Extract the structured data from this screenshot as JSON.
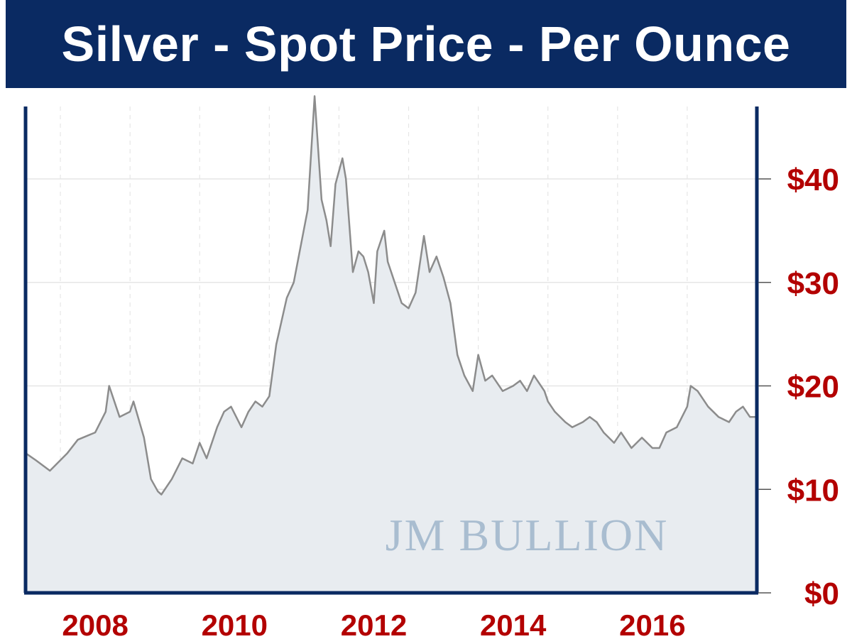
{
  "title": "Silver - Spot Price - Per Ounce",
  "watermark": "JM BULLION",
  "colors": {
    "title_bg": "#0a2a62",
    "title_text": "#ffffff",
    "frame": "#0a2a62",
    "tick_labels": "#b30000",
    "line": "#8c8c8c",
    "area_fill": "#e8ecf0",
    "grid": "#e6e6e6",
    "watermark": "#a9bdd0"
  },
  "chart_data": {
    "type": "area",
    "title": "Silver - Spot Price - Per Ounce",
    "xlabel": "",
    "ylabel": "",
    "xlim": [
      2007.0,
      2017.5
    ],
    "ylim": [
      0,
      47
    ],
    "grid": true,
    "legend": "none",
    "x_ticks": [
      2008,
      2010,
      2012,
      2014,
      2016
    ],
    "x_tick_labels": [
      "2008",
      "2010",
      "2012",
      "2014",
      "2016"
    ],
    "y_ticks": [
      0,
      10,
      20,
      30,
      40
    ],
    "y_tick_labels": [
      "$0",
      "$10",
      "$20",
      "$30",
      "$40"
    ],
    "y_axis_side": "right",
    "series": [
      {
        "x": [
          2007.0,
          2007.15,
          2007.35,
          2007.6,
          2007.75,
          2008.0,
          2008.15,
          2008.2,
          2008.35,
          2008.5,
          2008.55,
          2008.7,
          2008.8,
          2008.9,
          2008.95,
          2009.1,
          2009.25,
          2009.4,
          2009.5,
          2009.6,
          2009.75,
          2009.85,
          2009.95,
          2010.1,
          2010.2,
          2010.3,
          2010.4,
          2010.5,
          2010.6,
          2010.75,
          2010.85,
          2011.05,
          2011.15,
          2011.25,
          2011.32,
          2011.38,
          2011.45,
          2011.55,
          2011.6,
          2011.7,
          2011.78,
          2011.85,
          2011.92,
          2012.0,
          2012.05,
          2012.15,
          2012.2,
          2012.3,
          2012.4,
          2012.5,
          2012.6,
          2012.72,
          2012.8,
          2012.9,
          2013.0,
          2013.1,
          2013.2,
          2013.3,
          2013.42,
          2013.5,
          2013.6,
          2013.7,
          2013.85,
          2014.0,
          2014.1,
          2014.2,
          2014.3,
          2014.45,
          2014.5,
          2014.6,
          2014.75,
          2014.85,
          2015.0,
          2015.1,
          2015.2,
          2015.3,
          2015.45,
          2015.55,
          2015.7,
          2015.85,
          2016.0,
          2016.1,
          2016.2,
          2016.35,
          2016.5,
          2016.55,
          2016.65,
          2016.8,
          2016.95,
          2017.1,
          2017.2,
          2017.3,
          2017.4,
          2017.5
        ],
        "values": [
          13.5,
          12.8,
          11.8,
          13.5,
          14.8,
          15.5,
          17.5,
          20.0,
          17.0,
          17.5,
          18.5,
          15.0,
          11.0,
          9.8,
          9.5,
          11.0,
          13.0,
          12.5,
          14.5,
          13.0,
          16.0,
          17.5,
          18.0,
          16.0,
          17.5,
          18.5,
          18.0,
          19.0,
          24.0,
          28.5,
          30.0,
          37.0,
          48.0,
          38.0,
          36.0,
          33.5,
          39.5,
          42.0,
          40.0,
          31.0,
          33.0,
          32.5,
          31.0,
          28.0,
          33.0,
          35.0,
          32.0,
          30.0,
          28.0,
          27.5,
          29.0,
          34.5,
          31.0,
          32.5,
          30.5,
          28.0,
          23.0,
          21.0,
          19.5,
          23.0,
          20.5,
          21.0,
          19.5,
          20.0,
          20.5,
          19.5,
          21.0,
          19.5,
          18.5,
          17.5,
          16.5,
          16.0,
          16.5,
          17.0,
          16.5,
          15.5,
          14.5,
          15.5,
          14.0,
          15.0,
          14.0,
          14.0,
          15.5,
          16.0,
          18.0,
          20.0,
          19.5,
          18.0,
          17.0,
          16.5,
          17.5,
          18.0,
          17.0,
          17.0
        ]
      }
    ]
  }
}
